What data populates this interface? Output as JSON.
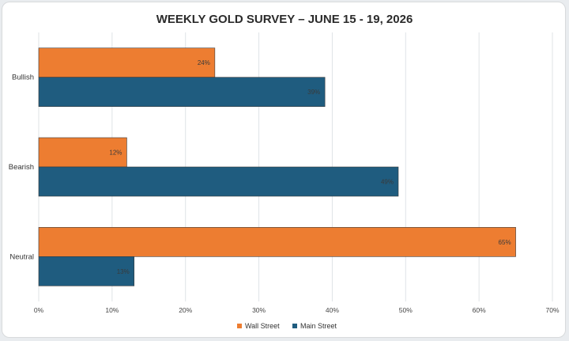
{
  "chart_data": {
    "type": "bar",
    "orientation": "horizontal",
    "title": "WEEKLY GOLD SURVEY – JUNE 15 - 19, 2026",
    "categories": [
      "Bullish",
      "Bearish",
      "Neutral"
    ],
    "series": [
      {
        "name": "Wall Street",
        "color": "#ed7d31",
        "values": [
          24,
          12,
          65
        ],
        "labels": [
          "24%",
          "12%",
          "65%"
        ]
      },
      {
        "name": "Main Street",
        "color": "#1f5c7f",
        "values": [
          39,
          49,
          13
        ],
        "labels": [
          "39%",
          "49%",
          "13%"
        ]
      }
    ],
    "xlim": [
      0,
      70
    ],
    "xticks": [
      {
        "value": 0,
        "label": "0%"
      },
      {
        "value": 10,
        "label": "10%"
      },
      {
        "value": 20,
        "label": "20%"
      },
      {
        "value": 30,
        "label": "30%"
      },
      {
        "value": 40,
        "label": "40%"
      },
      {
        "value": 50,
        "label": "50%"
      },
      {
        "value": 60,
        "label": "60%"
      },
      {
        "value": 70,
        "label": "70%"
      }
    ],
    "xlabel": "",
    "ylabel": "",
    "grid": true,
    "legend": "bottom-center"
  }
}
